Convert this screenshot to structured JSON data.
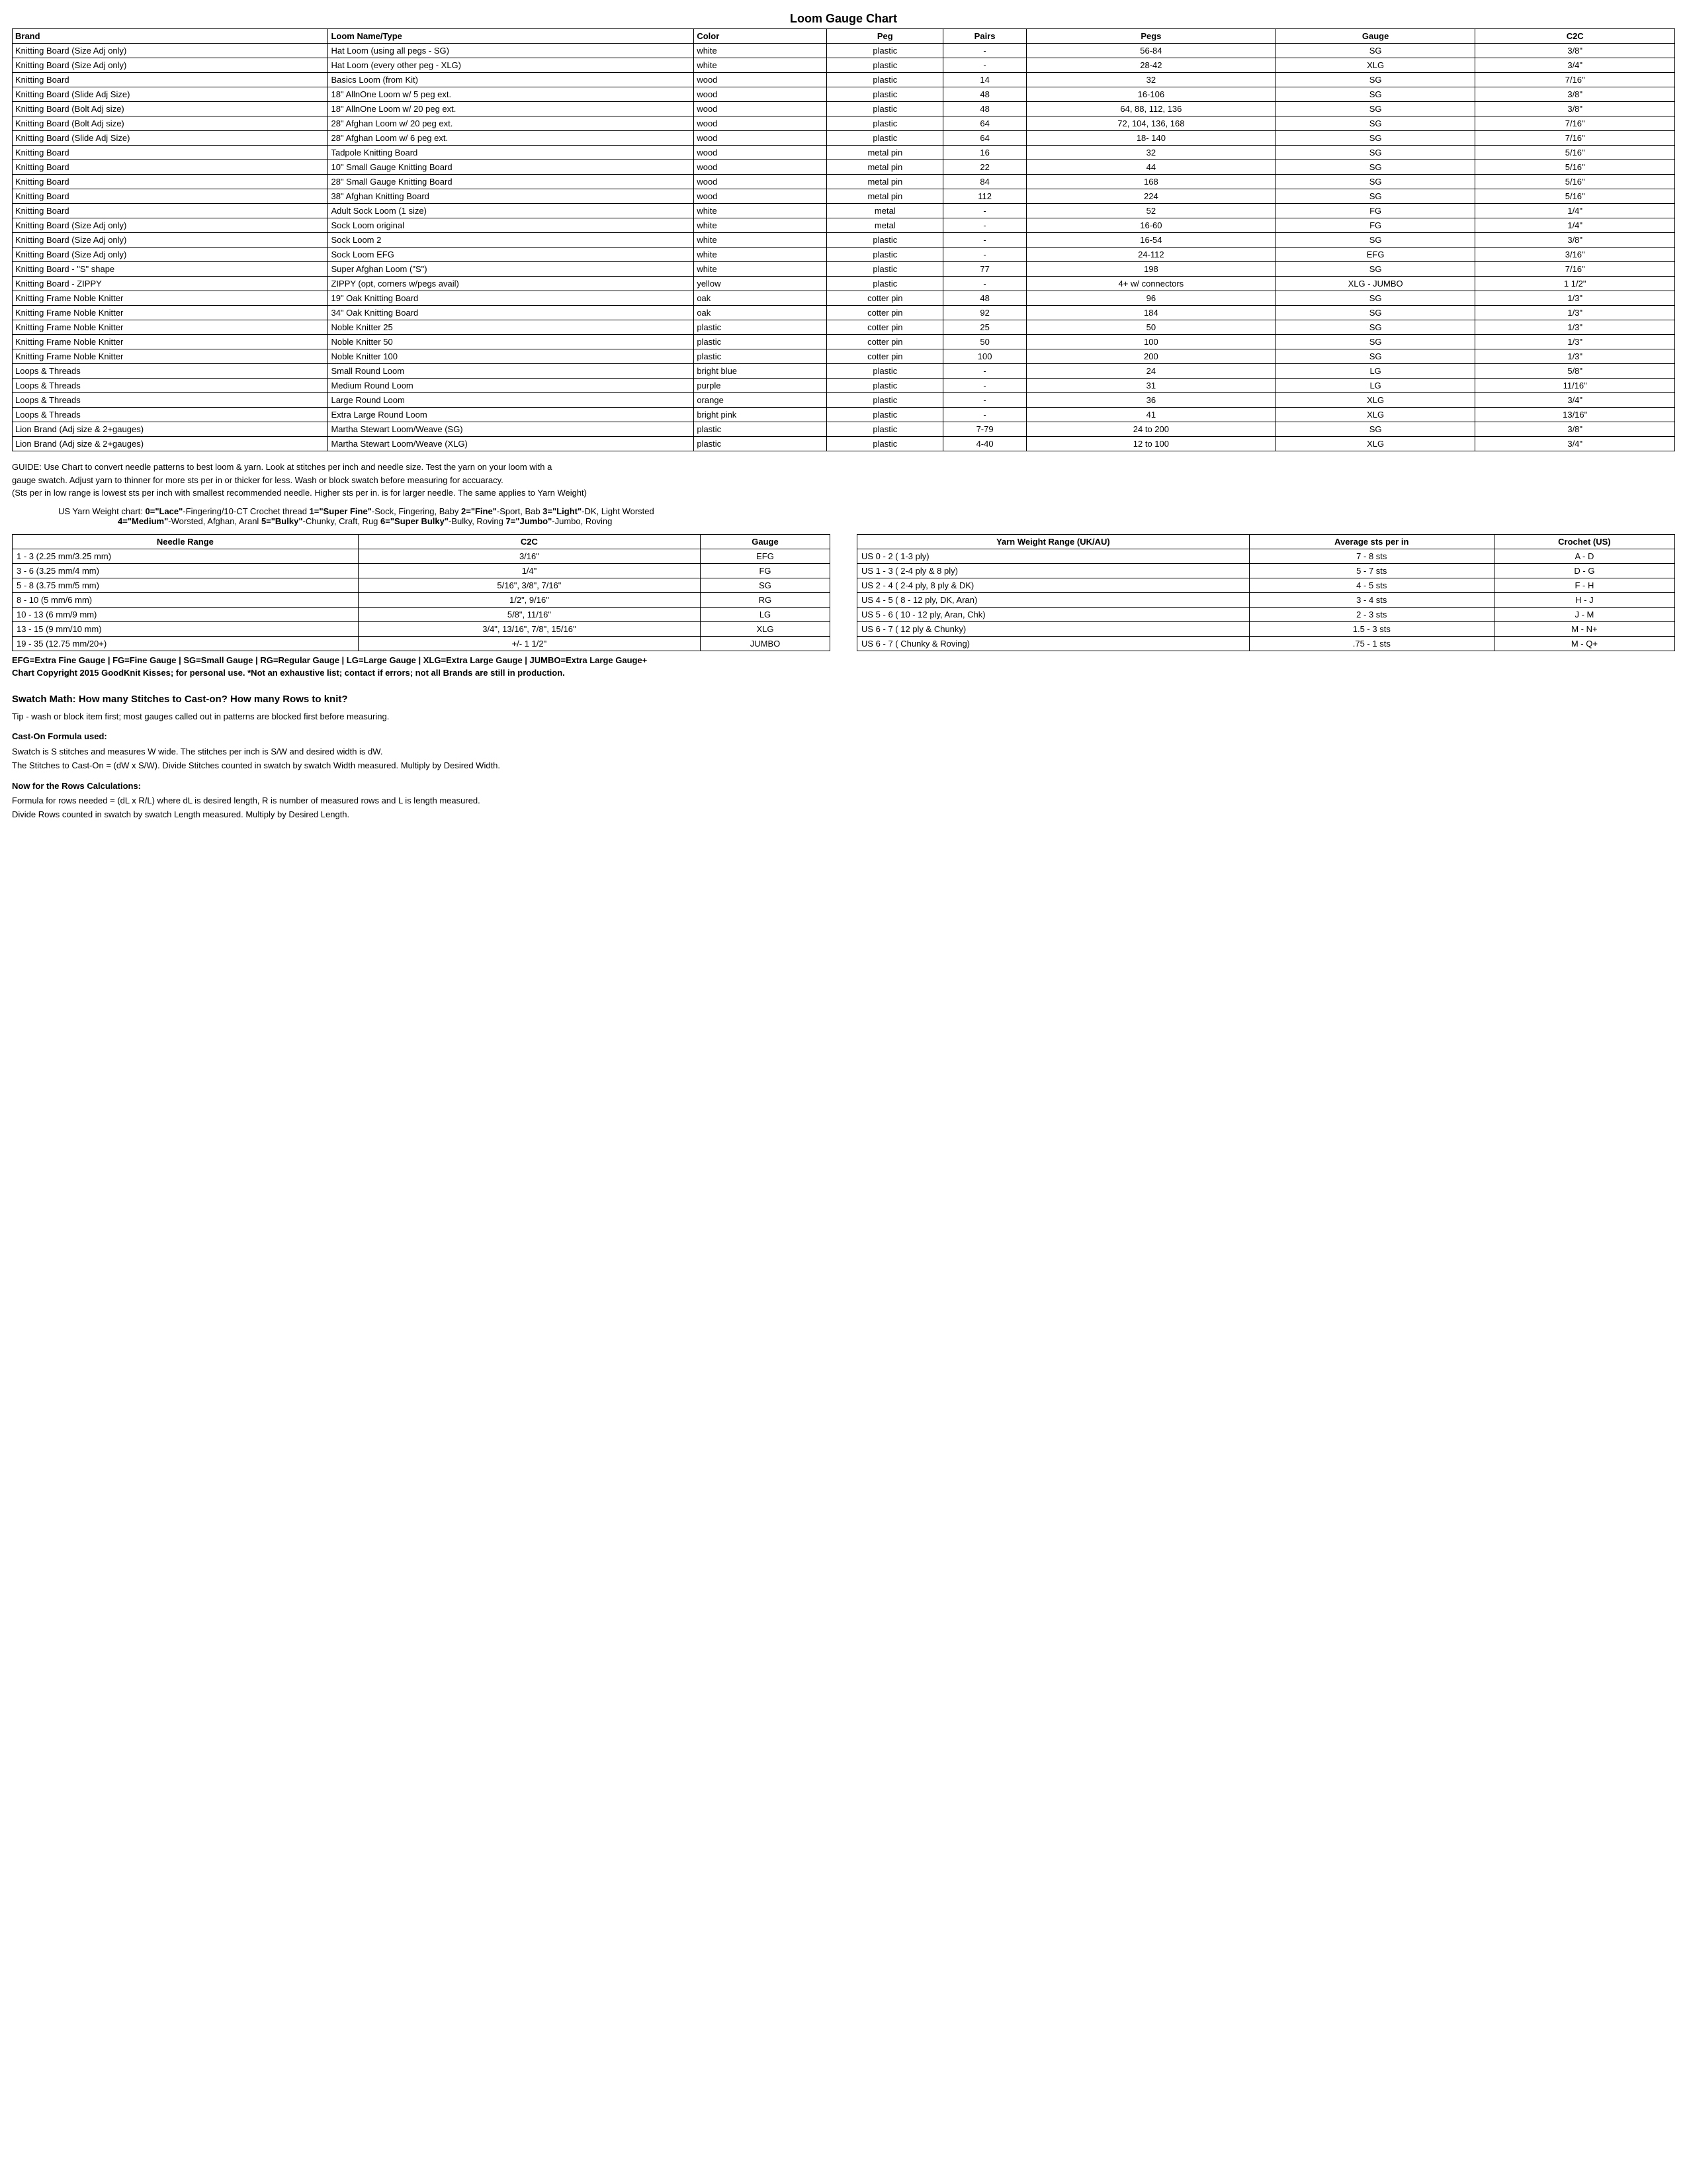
{
  "title": "Loom Gauge Chart",
  "main_table": {
    "headers": [
      "Brand",
      "Loom Name/Type",
      "Color",
      "Peg",
      "Pairs",
      "Pegs",
      "Gauge",
      "C2C"
    ],
    "col_align": [
      "left",
      "left",
      "left",
      "center",
      "center",
      "center",
      "center",
      "center"
    ],
    "col_widths": [
      "19%",
      "22%",
      "8%",
      "7%",
      "5%",
      "15%",
      "12%",
      "12%"
    ],
    "rows": [
      [
        "Knitting Board (Size Adj only)",
        "Hat Loom (using all pegs - SG)",
        "white",
        "plastic",
        "-",
        "56-84",
        "SG",
        "3/8\""
      ],
      [
        "Knitting Board (Size Adj only)",
        "Hat Loom (every other peg - XLG)",
        "white",
        "plastic",
        "-",
        "28-42",
        "XLG",
        "3/4\""
      ],
      [
        "Knitting Board",
        "Basics Loom (from Kit)",
        "wood",
        "plastic",
        "14",
        "32",
        "SG",
        "7/16\""
      ],
      [
        "Knitting Board (Slide Adj Size)",
        "18\" AllnOne Loom w/ 5 peg ext.",
        "wood",
        "plastic",
        "48",
        "16-106",
        "SG",
        "3/8\""
      ],
      [
        "Knitting Board (Bolt Adj size)",
        "18\" AllnOne Loom w/ 20 peg ext.",
        "wood",
        "plastic",
        "48",
        "64, 88, 112, 136",
        "SG",
        "3/8\""
      ],
      [
        "Knitting Board (Bolt Adj size)",
        "28\" Afghan Loom w/ 20 peg ext.",
        "wood",
        "plastic",
        "64",
        "72, 104, 136, 168",
        "SG",
        "7/16\""
      ],
      [
        "Knitting Board (Slide Adj Size)",
        "28\" Afghan Loom w/ 6 peg ext.",
        "wood",
        "plastic",
        "64",
        "18- 140",
        "SG",
        "7/16\""
      ],
      [
        "Knitting Board",
        "Tadpole Knitting Board",
        "wood",
        "metal pin",
        "16",
        "32",
        "SG",
        "5/16\""
      ],
      [
        "Knitting Board",
        "10\" Small Gauge Knitting Board",
        "wood",
        "metal pin",
        "22",
        "44",
        "SG",
        "5/16\""
      ],
      [
        "Knitting Board",
        "28\" Small Gauge Knitting Board",
        "wood",
        "metal pin",
        "84",
        "168",
        "SG",
        "5/16\""
      ],
      [
        "Knitting Board",
        "38\" Afghan Knitting Board",
        "wood",
        "metal pin",
        "112",
        "224",
        "SG",
        "5/16\""
      ],
      [
        "Knitting Board",
        "Adult Sock Loom (1 size)",
        "white",
        "metal",
        "-",
        "52",
        "FG",
        "1/4\""
      ],
      [
        "Knitting Board (Size Adj only)",
        "Sock Loom original",
        "white",
        "metal",
        "-",
        "16-60",
        "FG",
        "1/4\""
      ],
      [
        "Knitting Board (Size Adj only)",
        "Sock Loom 2",
        "white",
        "plastic",
        "-",
        "16-54",
        "SG",
        "3/8\""
      ],
      [
        "Knitting Board (Size Adj only)",
        "Sock Loom EFG",
        "white",
        "plastic",
        "-",
        "24-112",
        "EFG",
        "3/16\""
      ],
      [
        "Knitting Board - \"S\" shape",
        "Super Afghan Loom (\"S\")",
        "white",
        "plastic",
        "77",
        "198",
        "SG",
        "7/16\""
      ],
      [
        "Knitting Board - ZIPPY",
        "ZIPPY (opt, corners w/pegs avail)",
        "yellow",
        "plastic",
        "-",
        "4+ w/ connectors",
        "XLG - JUMBO",
        "1  1/2\""
      ],
      [
        "Knitting Frame Noble Knitter",
        "19\" Oak Knitting Board",
        "oak",
        "cotter pin",
        "48",
        "96",
        "SG",
        "1/3\""
      ],
      [
        "Knitting Frame Noble Knitter",
        "34\" Oak Knitting Board",
        "oak",
        "cotter pin",
        "92",
        "184",
        "SG",
        "1/3\""
      ],
      [
        "Knitting Frame Noble Knitter",
        "Noble Knitter 25",
        "plastic",
        "cotter pin",
        "25",
        "50",
        "SG",
        "1/3\""
      ],
      [
        "Knitting Frame Noble Knitter",
        "Noble Knitter 50",
        "plastic",
        "cotter pin",
        "50",
        "100",
        "SG",
        "1/3\""
      ],
      [
        "Knitting Frame Noble Knitter",
        "Noble Knitter 100",
        "plastic",
        "cotter pin",
        "100",
        "200",
        "SG",
        "1/3\""
      ],
      [
        "Loops & Threads",
        "Small Round Loom",
        "bright blue",
        "plastic",
        "-",
        "24",
        "LG",
        "5/8\""
      ],
      [
        "Loops & Threads",
        "Medium Round Loom",
        "purple",
        "plastic",
        "-",
        "31",
        "LG",
        "11/16\""
      ],
      [
        "Loops & Threads",
        "Large Round Loom",
        "orange",
        "plastic",
        "-",
        "36",
        "XLG",
        "3/4\""
      ],
      [
        "Loops & Threads",
        "Extra Large Round Loom",
        "bright pink",
        "plastic",
        "-",
        "41",
        "XLG",
        "13/16\""
      ],
      [
        "Lion Brand (Adj size & 2+gauges)",
        "Martha Stewart Loom/Weave (SG)",
        "plastic",
        "plastic",
        "7-79",
        "24 to 200",
        "SG",
        "3/8\""
      ],
      [
        "Lion Brand (Adj size & 2+gauges)",
        "Martha Stewart Loom/Weave (XLG)",
        "plastic",
        "plastic",
        "4-40",
        "12 to 100",
        "XLG",
        "3/4\""
      ]
    ]
  },
  "guide_lines": [
    "GUIDE: Use Chart to convert needle patterns to best loom & yarn.  Look at stitches per inch and needle size.  Test the yarn on your loom with a",
    "gauge swatch.  Adjust yarn to thinner for more sts per in or thicker for less. Wash or block swatch before measuring for accuaracy.",
    "(Sts per in low range is lowest sts per inch with smallest recommended needle.  Higher sts per in. is for larger needle. The same applies to Yarn Weight)"
  ],
  "yarn_weight_intro": "US Yarn Weight chart:",
  "yarn_weights_line1": [
    {
      "code": "0=\"Lace\"",
      "desc": "-Fingering/10-CT Crochet thread"
    },
    {
      "code": "1=\"Super Fine\"",
      "desc": "-Sock, Fingering, Baby"
    },
    {
      "code": "2=\"Fine\"",
      "desc": "-Sport, Bab"
    },
    {
      "code": "3=\"Light\"",
      "desc": "-DK, Light Worsted"
    }
  ],
  "yarn_weights_line2": [
    {
      "code": "4=\"Medium\"",
      "desc": "-Worsted, Afghan, Aranl"
    },
    {
      "code": "5=\"Bulky\"",
      "desc": "-Chunky, Craft, Rug"
    },
    {
      "code": "6=\"Super Bulky\"",
      "desc": "-Bulky, Roving"
    },
    {
      "code": "7=\"Jumbo\"",
      "desc": "-Jumbo, Roving"
    }
  ],
  "needle_table": {
    "headers": [
      "Needle Range",
      "C2C",
      "Gauge"
    ],
    "col_align": [
      "left",
      "center",
      "center"
    ],
    "rows": [
      [
        "1 - 3 (2.25 mm/3.25 mm)",
        "3/16\"",
        "EFG"
      ],
      [
        "3 - 6 (3.25 mm/4 mm)",
        "1/4\"",
        "FG"
      ],
      [
        "5 - 8 (3.75 mm/5 mm)",
        "5/16\",  3/8\", 7/16\"",
        "SG"
      ],
      [
        "8 - 10 (5 mm/6 mm)",
        "1/2\", 9/16\"",
        "RG"
      ],
      [
        "10 - 13 (6 mm/9 mm)",
        "5/8\", 11/16\"",
        "LG"
      ],
      [
        "13 - 15 (9 mm/10 mm)",
        "3/4\", 13/16\", 7/8\", 15/16\"",
        "XLG"
      ],
      [
        "19 - 35 (12.75 mm/20+)",
        "+/-  1  1/2\"",
        "JUMBO"
      ]
    ]
  },
  "yarn_range_table": {
    "headers": [
      "Yarn Weight Range (UK/AU)",
      "Average sts per in",
      "Crochet (US)"
    ],
    "col_align": [
      "left",
      "center",
      "center"
    ],
    "rows": [
      [
        "US 0 - 2 ( 1-3 ply)",
        "7 - 8 sts",
        "A - D"
      ],
      [
        "US 1 - 3 ( 2-4 ply & 8 ply)",
        "5 - 7 sts",
        "D - G"
      ],
      [
        "US 2 - 4 ( 2-4 ply, 8 ply & DK)",
        "4 - 5 sts",
        "F - H"
      ],
      [
        "US 4 - 5 ( 8 - 12 ply, DK, Aran)",
        "3 - 4 sts",
        "H - J"
      ],
      [
        "US 5 - 6 ( 10 - 12 ply, Aran, Chk)",
        "2 - 3 sts",
        "J - M"
      ],
      [
        "US 6 - 7 ( 12 ply & Chunky)",
        "1.5 - 3 sts",
        "M - N+"
      ],
      [
        "US 6 - 7 ( Chunky & Roving)",
        ".75  - 1 sts",
        "M - Q+"
      ]
    ]
  },
  "legend_line1": "EFG=Extra Fine Gauge | FG=Fine Gauge | SG=Small Gauge | RG=Regular Gauge | LG=Large Gauge | XLG=Extra Large Gauge | JUMBO=Extra Large Gauge+",
  "legend_line2": "Chart Copyright 2015 GoodKnit Kisses; for personal use. *Not an exhaustive list; contact if errors; not all Brands are still in production.",
  "swatch": {
    "heading": "Swatch Math: How many Stitches to Cast-on? How many Rows to knit?",
    "tip": "Tip - wash or block item first; most gauges called out in patterns are blocked first before measuring.",
    "cast_on_label": "Cast-On Formula used:",
    "cast_on_l1": "Swatch is S stitches and measures W wide. The stitches per inch is S/W and desired width is dW.",
    "cast_on_l2": "The Stitches to Cast-On = (dW x S/W). Divide Stitches counted in swatch by swatch Width measured. Multiply by Desired Width.",
    "rows_label": "Now for the Rows Calculations:",
    "rows_l1": "Formula for rows needed = (dL x R/L) where dL is desired length, R is number of measured rows and L is length measured.",
    "rows_l2": "Divide Rows counted in swatch by swatch Length measured.  Multiply by Desired Length."
  }
}
